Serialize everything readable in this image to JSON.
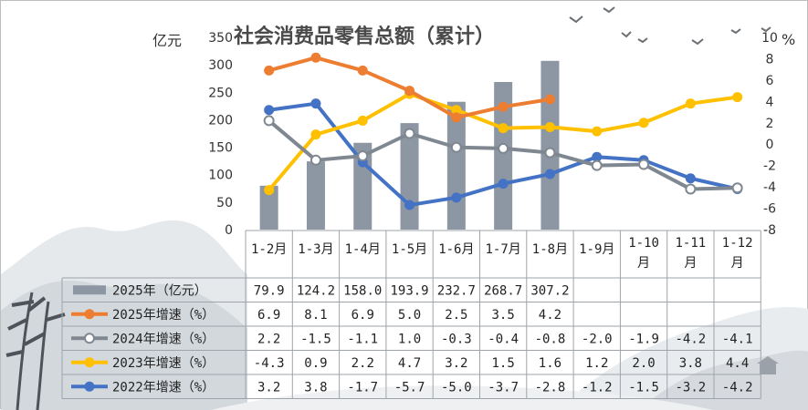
{
  "chart_data": {
    "type": "bar+line",
    "title": "社会消费品零售总额（累计）",
    "ylabel_left": "亿元",
    "ylabel_right": "%",
    "ylim_left": [
      0,
      350
    ],
    "yticks_left": [
      "0",
      "50",
      "100",
      "150",
      "200",
      "250",
      "300",
      "350"
    ],
    "ylim_right": [
      -8,
      10
    ],
    "yticks_right": [
      "-8",
      "-6",
      "-4",
      "-2",
      "0",
      "2",
      "4",
      "6",
      "8",
      "10"
    ],
    "categories": [
      "1-2月",
      "1-3月",
      "1-4月",
      "1-5月",
      "1-6月",
      "1-7月",
      "1-8月",
      "1-9月",
      "1-10月",
      "1-11月",
      "1-12月"
    ],
    "series": [
      {
        "name": "2025年（亿元）",
        "type": "bar",
        "axis": "left",
        "color": "#8c97a3",
        "values": [
          79.9,
          124.2,
          158.0,
          193.9,
          232.7,
          268.7,
          307.2,
          null,
          null,
          null,
          null
        ],
        "labels": [
          "79.9",
          "124.2",
          "158.0",
          "193.9",
          "232.7",
          "268.7",
          "307.2",
          "",
          "",
          "",
          ""
        ]
      },
      {
        "name": "2025年增速（%）",
        "type": "line",
        "axis": "right",
        "color": "#ed7d31",
        "marker": "filled",
        "values": [
          6.9,
          8.1,
          6.9,
          5.0,
          2.5,
          3.5,
          4.2,
          null,
          null,
          null,
          null
        ],
        "labels": [
          "6.9",
          "8.1",
          "6.9",
          "5.0",
          "2.5",
          "3.5",
          "4.2",
          "",
          "",
          "",
          ""
        ]
      },
      {
        "name": "2024年增速（%）",
        "type": "line",
        "axis": "right",
        "color": "#7f8790",
        "marker": "hollow",
        "values": [
          2.2,
          -1.5,
          -1.1,
          1.0,
          -0.3,
          -0.4,
          -0.8,
          -2.0,
          -1.9,
          -4.2,
          -4.1
        ],
        "labels": [
          "2.2",
          "-1.5",
          "-1.1",
          "1.0",
          "-0.3",
          "-0.4",
          "-0.8",
          "-2.0",
          "-1.9",
          "-4.2",
          "-4.1"
        ]
      },
      {
        "name": "2023年增速（%）",
        "type": "line",
        "axis": "right",
        "color": "#ffc000",
        "marker": "filled",
        "values": [
          -4.3,
          0.9,
          2.2,
          4.7,
          3.2,
          1.5,
          1.6,
          1.2,
          2.0,
          3.8,
          4.4
        ],
        "labels": [
          "-4.3",
          "0.9",
          "2.2",
          "4.7",
          "3.2",
          "1.5",
          "1.6",
          "1.2",
          "2.0",
          "3.8",
          "4.4"
        ]
      },
      {
        "name": "2022年增速（%）",
        "type": "line",
        "axis": "right",
        "color": "#4472c4",
        "marker": "filled",
        "values": [
          3.2,
          3.8,
          -1.7,
          -5.7,
          -5.0,
          -3.7,
          -2.8,
          -1.2,
          -1.5,
          -3.2,
          -4.2
        ],
        "labels": [
          "3.2",
          "3.8",
          "-1.7",
          "-5.7",
          "-5.0",
          "-3.7",
          "-2.8",
          "-1.2",
          "-1.5",
          "-3.2",
          "-4.2"
        ]
      }
    ],
    "legend": "data-table-bottom",
    "grid": false
  }
}
